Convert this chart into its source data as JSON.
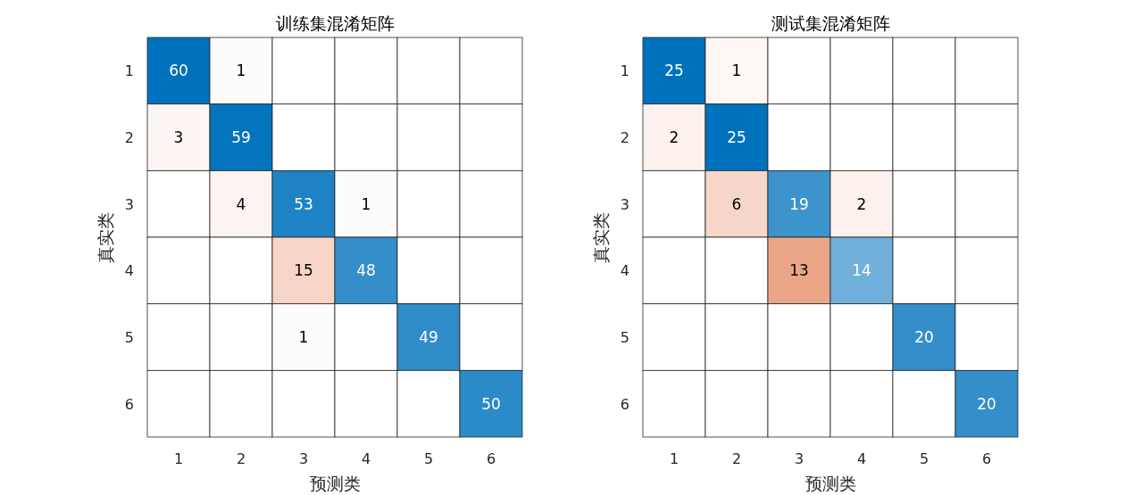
{
  "chart_data": [
    {
      "type": "heatmap",
      "data_labels": true,
      "title": "训练集混淆矩阵",
      "xlabel": "预测类",
      "ylabel": "真实类",
      "categories": [
        "1",
        "2",
        "3",
        "4",
        "5",
        "6"
      ],
      "y_categories": [
        "1",
        "2",
        "3",
        "4",
        "5",
        "6"
      ],
      "cells": [
        [
          60,
          1,
          null,
          null,
          null,
          null
        ],
        [
          3,
          59,
          null,
          null,
          null,
          null
        ],
        [
          null,
          4,
          53,
          1,
          null,
          null
        ],
        [
          null,
          null,
          15,
          48,
          null,
          null
        ],
        [
          null,
          null,
          1,
          null,
          49,
          null
        ],
        [
          null,
          null,
          null,
          null,
          null,
          50
        ]
      ]
    },
    {
      "type": "heatmap",
      "data_labels": true,
      "title": "测试集混淆矩阵",
      "xlabel": "预测类",
      "ylabel": "真实类",
      "categories": [
        "1",
        "2",
        "3",
        "4",
        "5",
        "6"
      ],
      "y_categories": [
        "1",
        "2",
        "3",
        "4",
        "5",
        "6"
      ],
      "cells": [
        [
          25,
          1,
          null,
          null,
          null,
          null
        ],
        [
          2,
          25,
          null,
          null,
          null,
          null
        ],
        [
          null,
          6,
          19,
          2,
          null,
          null
        ],
        [
          null,
          null,
          13,
          14,
          null,
          null
        ],
        [
          null,
          null,
          null,
          null,
          20,
          null
        ],
        [
          null,
          null,
          null,
          null,
          null,
          20
        ]
      ]
    }
  ]
}
